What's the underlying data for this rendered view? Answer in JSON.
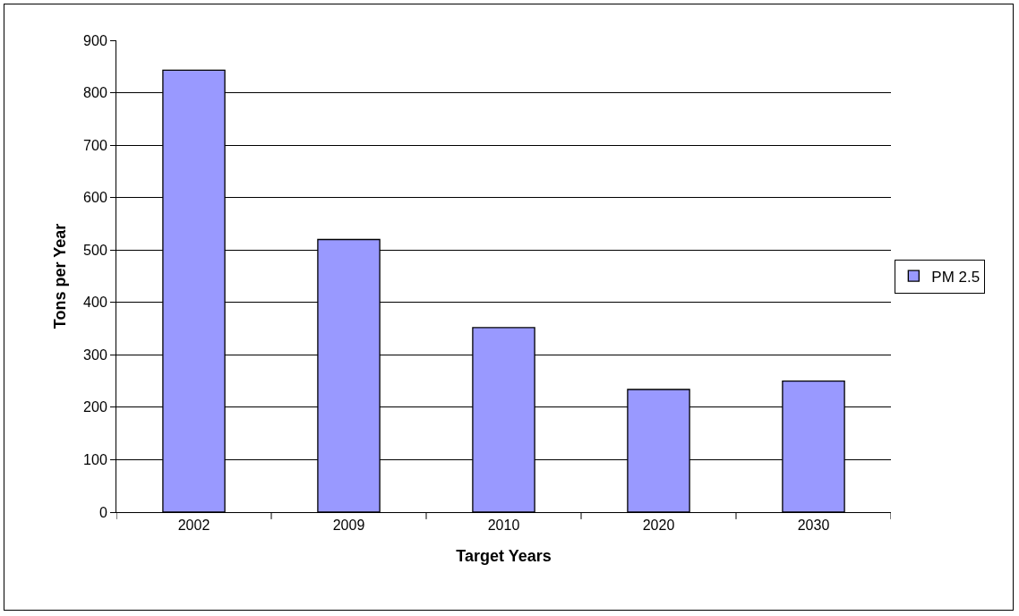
{
  "chart_data": {
    "type": "bar",
    "xlabel": "Target Years",
    "ylabel": "Tons per Year",
    "categories": [
      "2002",
      "2009",
      "2010",
      "2020",
      "2030"
    ],
    "series": [
      {
        "name": "PM 2.5",
        "color": "#9999ff",
        "values": [
          843,
          520,
          352,
          234,
          250
        ]
      }
    ],
    "ylim": [
      0,
      900
    ],
    "yticks": [
      0,
      100,
      200,
      300,
      400,
      500,
      600,
      700,
      800,
      900
    ],
    "grid": "y",
    "legend": "right"
  }
}
